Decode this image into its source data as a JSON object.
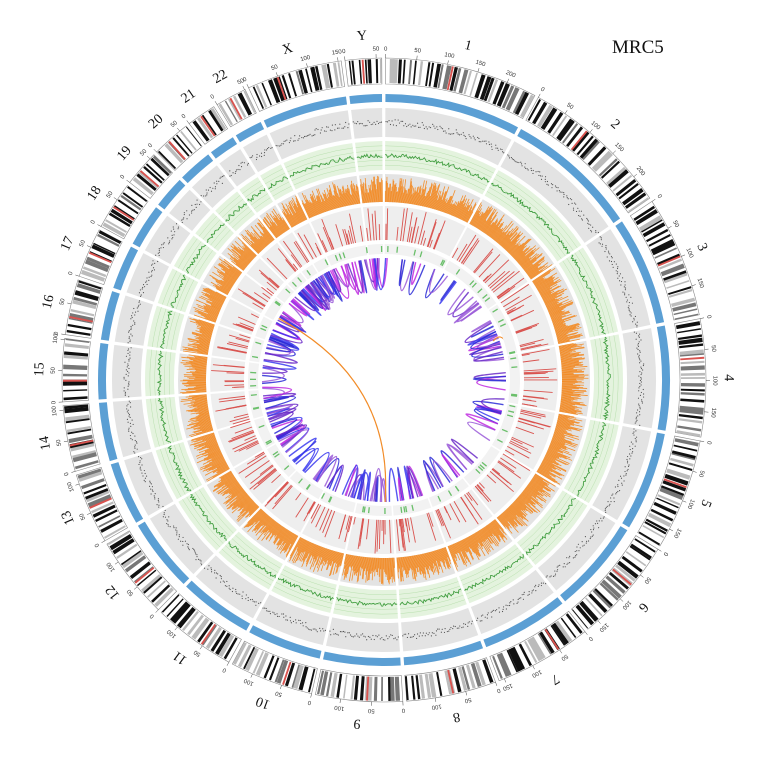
{
  "title": "MRC5",
  "chromosomes": [
    {
      "name": "1",
      "length": 249
    },
    {
      "name": "2",
      "length": 243
    },
    {
      "name": "3",
      "length": 198
    },
    {
      "name": "4",
      "length": 191
    },
    {
      "name": "5",
      "length": 181
    },
    {
      "name": "6",
      "length": 171
    },
    {
      "name": "7",
      "length": 159
    },
    {
      "name": "8",
      "length": 146
    },
    {
      "name": "9",
      "length": 141
    },
    {
      "name": "10",
      "length": 136
    },
    {
      "name": "11",
      "length": 135
    },
    {
      "name": "12",
      "length": 134
    },
    {
      "name": "13",
      "length": 115
    },
    {
      "name": "14",
      "length": 107
    },
    {
      "name": "15",
      "length": 102
    },
    {
      "name": "16",
      "length": 90
    },
    {
      "name": "17",
      "length": 81
    },
    {
      "name": "18",
      "length": 78
    },
    {
      "name": "19",
      "length": 59
    },
    {
      "name": "20",
      "length": 63
    },
    {
      "name": "21",
      "length": 48
    },
    {
      "name": "22",
      "length": 51
    },
    {
      "name": "X",
      "length": 155
    },
    {
      "name": "Y",
      "length": 59
    }
  ],
  "colors": {
    "ideogram_band": "#111111",
    "ideogram_centromere": "#d9534f",
    "cn_track": "#5b9fd4",
    "scatter_bg": "#e3e3e3",
    "scatter_points": "#555555",
    "green_bg": "#e4f3de",
    "green_line": "#3a9a3a",
    "orange_bg": "#e3e3e3",
    "orange_fill": "#f28c28",
    "red_bg": "#eeeeee",
    "red_bars": "#d9534f",
    "links": [
      "#2a2ad6",
      "#6a2ac8",
      "#c02ae0",
      "#9a5ad8",
      "#3a3aee"
    ],
    "long_link": "#f28c28"
  }
}
